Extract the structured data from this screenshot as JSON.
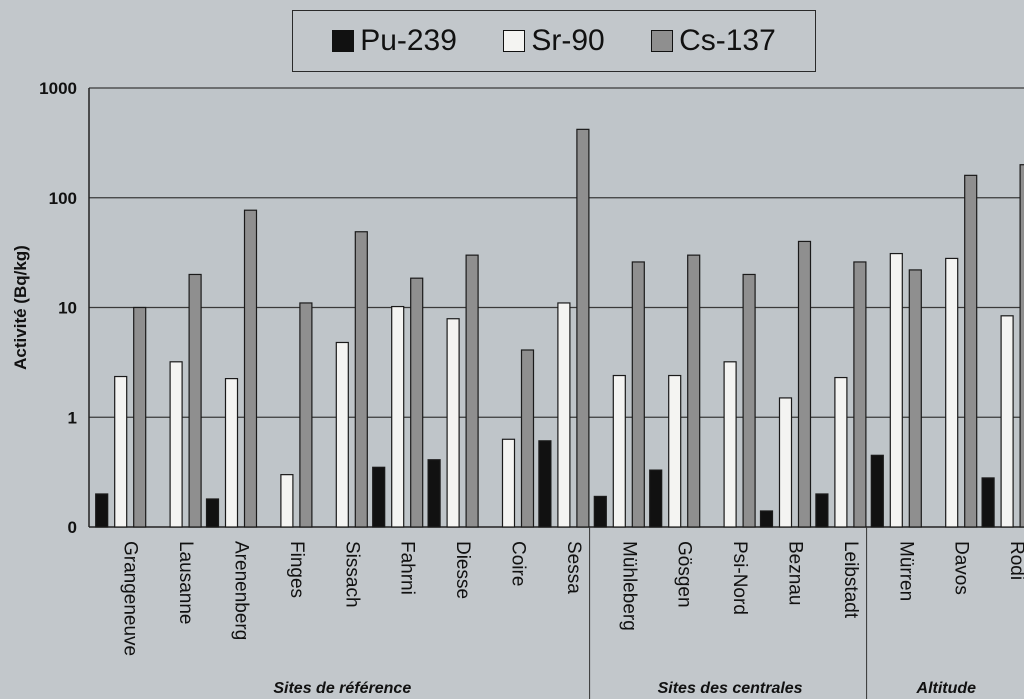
{
  "chart_data": {
    "type": "bar",
    "title": "",
    "xlabel": "",
    "ylabel": "Activité (Bq/kg)",
    "yscale": "log",
    "ylim": [
      0,
      1000
    ],
    "y_ticks": [
      "1000",
      "100",
      "10",
      "1",
      "0"
    ],
    "grid": true,
    "legend_position": "top-center",
    "categories": [
      "Grangeneuve",
      "Lausanne",
      "Arenenberg",
      "Finges",
      "Sissach",
      "Fahrni",
      "Diesse",
      "Coire",
      "Sessa",
      "Mühleberg",
      "Gösgen",
      "Psi-Nord",
      "Beznau",
      "Leibstadt",
      "Mürren",
      "Davos",
      "Rodi"
    ],
    "series": [
      {
        "name": "Pu-239",
        "color": "#111111",
        "values": [
          0.2,
          null,
          0.18,
          null,
          null,
          0.35,
          0.41,
          null,
          0.61,
          0.19,
          0.33,
          null,
          0.14,
          0.2,
          0.45,
          null,
          0.28
        ]
      },
      {
        "name": "Sr-90",
        "color": "#f4f4f2",
        "values": [
          2.35,
          3.2,
          2.25,
          0.3,
          4.8,
          10.2,
          7.9,
          0.63,
          11,
          2.4,
          2.4,
          3.2,
          1.5,
          2.3,
          31,
          28,
          8.4
        ]
      },
      {
        "name": "Cs-137",
        "color": "#8f8f8f",
        "values": [
          10,
          20,
          77,
          11,
          49,
          18.5,
          30,
          4.1,
          420,
          26,
          30,
          20,
          40,
          26,
          22,
          160,
          200
        ]
      }
    ],
    "groups": [
      {
        "label": "Sites de référence",
        "categories": [
          "Grangeneuve",
          "Lausanne",
          "Arenenberg",
          "Finges",
          "Sissach",
          "Fahrni",
          "Diesse",
          "Coire",
          "Sessa"
        ]
      },
      {
        "label": "Sites des centrales",
        "categories": [
          "Mühleberg",
          "Gösgen",
          "Psi-Nord",
          "Beznau",
          "Leibstadt"
        ]
      },
      {
        "label": "Altitude",
        "categories": [
          "Mürren",
          "Davos",
          "Rodi"
        ]
      }
    ]
  }
}
